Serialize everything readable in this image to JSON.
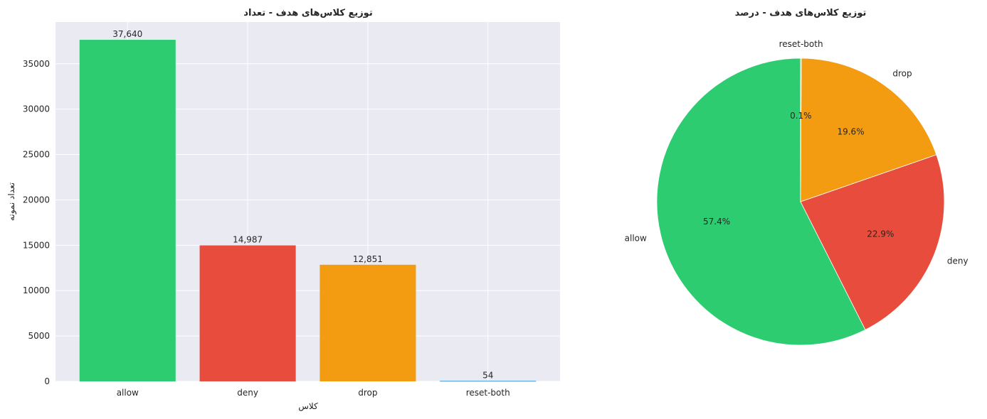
{
  "chart_data": [
    {
      "type": "bar",
      "title": "توزیع کلاس‌های هدف - تعداد",
      "xlabel": "کلاس",
      "ylabel": "تعداد نمونه",
      "categories": [
        "allow",
        "deny",
        "drop",
        "reset-both"
      ],
      "values": [
        37640,
        14987,
        12851,
        54
      ],
      "value_labels": [
        "37,640",
        "14,987",
        "12,851",
        "54"
      ],
      "colors": [
        "#2ecc71",
        "#e74c3c",
        "#f39c12",
        "#3498db"
      ],
      "ylim": [
        0,
        39600
      ],
      "yticks": [
        0,
        5000,
        10000,
        15000,
        20000,
        25000,
        30000,
        35000
      ],
      "ytick_labels": [
        "0",
        "5000",
        "10000",
        "15000",
        "20000",
        "25000",
        "30000",
        "35000"
      ],
      "grid": true,
      "background": "#eaeaf2"
    },
    {
      "type": "pie",
      "title": "توزیع کلاس‌های هدف - درصد",
      "labels": [
        "allow",
        "deny",
        "drop",
        "reset-both"
      ],
      "values": [
        37640,
        14987,
        12851,
        54
      ],
      "percent_labels": [
        "57.4%",
        "22.9%",
        "19.6%",
        "0.1%"
      ],
      "colors": [
        "#2ecc71",
        "#e74c3c",
        "#f39c12",
        "#3498db"
      ],
      "start_angle": 90
    }
  ]
}
